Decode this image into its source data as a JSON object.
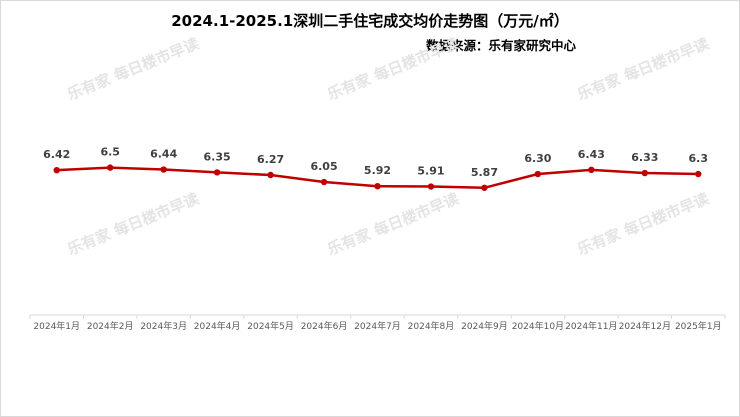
{
  "chart_data": {
    "type": "line",
    "title": "2024.1-2025.1深圳二手住宅成交均价走势图（万元/㎡）",
    "source": "数据来源：乐有家研究中心",
    "categories": [
      "2024年1月",
      "2024年2月",
      "2024年3月",
      "2024年4月",
      "2024年5月",
      "2024年6月",
      "2024年7月",
      "2024年8月",
      "2024年9月",
      "2024年10月",
      "2024年11月",
      "2024年12月",
      "2025年1月"
    ],
    "series": [
      {
        "name": "成交均价",
        "values": [
          6.42,
          6.5,
          6.44,
          6.35,
          6.27,
          6.05,
          5.92,
          5.91,
          5.87,
          6.3,
          6.43,
          6.33,
          6.3
        ],
        "labels": [
          "6.42",
          "6.5",
          "6.44",
          "6.35",
          "6.27",
          "6.05",
          "5.92",
          "5.91",
          "5.87",
          "6.30",
          "6.43",
          "6.33",
          "6.3"
        ]
      }
    ],
    "xlabel": "",
    "ylabel": "",
    "ylim": [
      1.9,
      6.8
    ],
    "grid": false,
    "legend": "none",
    "line_color": "#c00000",
    "watermark": "乐有家 每日楼市早读"
  }
}
